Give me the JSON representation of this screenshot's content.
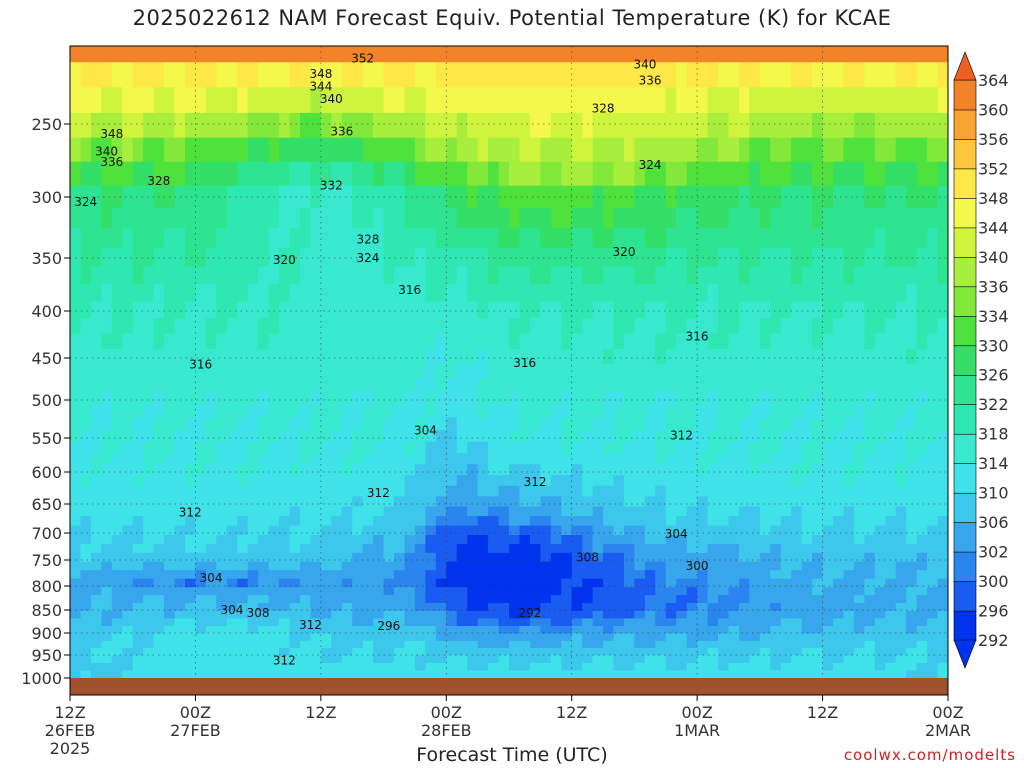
{
  "chart_data": {
    "type": "contour",
    "title": "2025022612 NAM Forecast Equiv. Potential Temperature (K) for KCAE",
    "xlabel": "Forecast Time (UTC)",
    "ylabel": "",
    "credit": "coolwx.com/modelts",
    "y_axis": {
      "scale": "pressure (hPa), inverted",
      "range": [
        1000,
        200
      ],
      "ticks": [
        250,
        300,
        350,
        400,
        450,
        500,
        550,
        600,
        650,
        700,
        750,
        800,
        850,
        900,
        950,
        1000
      ]
    },
    "x_axis": {
      "range_hours": [
        0,
        84
      ],
      "ticks": [
        {
          "h": 0,
          "label": "12Z",
          "sub": "26FEB",
          "sub2": "2025"
        },
        {
          "h": 12,
          "label": "00Z",
          "sub": "27FEB"
        },
        {
          "h": 24,
          "label": "12Z",
          "sub": ""
        },
        {
          "h": 36,
          "label": "00Z",
          "sub": "28FEB"
        },
        {
          "h": 48,
          "label": "12Z",
          "sub": ""
        },
        {
          "h": 60,
          "label": "00Z",
          "sub": "1MAR"
        },
        {
          "h": 72,
          "label": "12Z",
          "sub": ""
        },
        {
          "h": 84,
          "label": "00Z",
          "sub": "2MAR"
        }
      ]
    },
    "colorbar": {
      "levels": [
        292,
        296,
        300,
        302,
        306,
        310,
        314,
        318,
        322,
        326,
        330,
        334,
        336,
        340,
        344,
        348,
        352,
        356,
        360,
        364
      ],
      "colors": [
        "#0033ee",
        "#1a5cf2",
        "#2b85ee",
        "#37a6ec",
        "#3ec7ec",
        "#3fe2e9",
        "#39e9cf",
        "#2fe7b0",
        "#2fe491",
        "#33df66",
        "#4fe23d",
        "#82e83a",
        "#a8ee3c",
        "#cff43e",
        "#f3f84a",
        "#fde847",
        "#fbc63b",
        "#f8a432",
        "#f38328",
        "#ee5f22"
      ]
    },
    "terrain_color": "#a0522d",
    "contour_labels": [
      {
        "v": "352",
        "h": 28.0,
        "p": 208
      },
      {
        "v": "348",
        "h": 24.0,
        "p": 218
      },
      {
        "v": "344",
        "h": 24.0,
        "p": 226
      },
      {
        "v": "340",
        "h": 25.0,
        "p": 234
      },
      {
        "v": "336",
        "h": 26.0,
        "p": 255
      },
      {
        "v": "348",
        "h": 4.0,
        "p": 257
      },
      {
        "v": "340",
        "h": 3.5,
        "p": 269
      },
      {
        "v": "336",
        "h": 4.0,
        "p": 276
      },
      {
        "v": "328",
        "h": 8.5,
        "p": 289
      },
      {
        "v": "332",
        "h": 25.0,
        "p": 292
      },
      {
        "v": "324",
        "h": 1.5,
        "p": 304
      },
      {
        "v": "328",
        "h": 28.5,
        "p": 335
      },
      {
        "v": "324",
        "h": 28.5,
        "p": 350
      },
      {
        "v": "320",
        "h": 20.5,
        "p": 352
      },
      {
        "v": "316",
        "h": 32.5,
        "p": 380
      },
      {
        "v": "316",
        "h": 12.5,
        "p": 458
      },
      {
        "v": "304",
        "h": 34.0,
        "p": 540
      },
      {
        "v": "316",
        "h": 43.5,
        "p": 456
      },
      {
        "v": "312",
        "h": 29.5,
        "p": 633
      },
      {
        "v": "312",
        "h": 44.5,
        "p": 616
      },
      {
        "v": "312",
        "h": 11.5,
        "p": 665
      },
      {
        "v": "304",
        "h": 13.5,
        "p": 785
      },
      {
        "v": "304",
        "h": 15.5,
        "p": 850
      },
      {
        "v": "308",
        "h": 18.0,
        "p": 856
      },
      {
        "v": "312",
        "h": 23.0,
        "p": 883
      },
      {
        "v": "296",
        "h": 30.5,
        "p": 885
      },
      {
        "v": "312",
        "h": 20.5,
        "p": 962
      },
      {
        "v": "292",
        "h": 44.0,
        "p": 856
      },
      {
        "v": "308",
        "h": 49.5,
        "p": 745
      },
      {
        "v": "304",
        "h": 58.0,
        "p": 702
      },
      {
        "v": "300",
        "h": 60.0,
        "p": 762
      },
      {
        "v": "312",
        "h": 58.5,
        "p": 547
      },
      {
        "v": "316",
        "h": 60.0,
        "p": 427
      },
      {
        "v": "320",
        "h": 53.0,
        "p": 345
      },
      {
        "v": "324",
        "h": 55.5,
        "p": 278
      },
      {
        "v": "328",
        "h": 51.0,
        "p": 240
      },
      {
        "v": "340",
        "h": 55.0,
        "p": 212
      },
      {
        "v": "336",
        "h": 55.5,
        "p": 222
      }
    ]
  }
}
